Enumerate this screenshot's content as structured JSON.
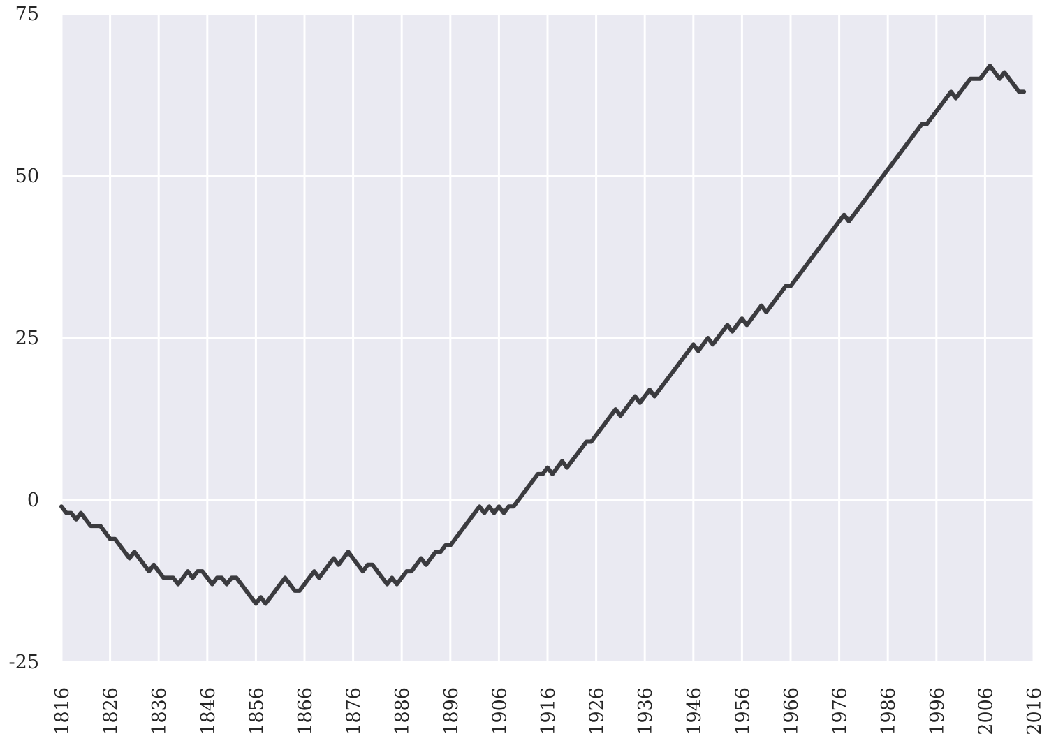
{
  "chart_data": {
    "type": "line",
    "x": [
      1816,
      1817,
      1818,
      1819,
      1820,
      1822,
      1824,
      1826,
      1827,
      1830,
      1831,
      1834,
      1835,
      1837,
      1839,
      1840,
      1842,
      1843,
      1844,
      1845,
      1847,
      1848,
      1849,
      1850,
      1851,
      1852,
      1856,
      1857,
      1858,
      1862,
      1864,
      1865,
      1868,
      1869,
      1872,
      1873,
      1875,
      1878,
      1879,
      1880,
      1883,
      1884,
      1885,
      1887,
      1888,
      1890,
      1891,
      1893,
      1894,
      1895,
      1896,
      1902,
      1903,
      1904,
      1905,
      1906,
      1907,
      1908,
      1909,
      1914,
      1915,
      1916,
      1917,
      1919,
      1920,
      1924,
      1925,
      1930,
      1931,
      1934,
      1935,
      1937,
      1938,
      1946,
      1947,
      1949,
      1950,
      1953,
      1954,
      1956,
      1957,
      1960,
      1961,
      1965,
      1966,
      1977,
      1978,
      1993,
      1994,
      1999,
      2000,
      2003,
      2005,
      2007,
      2009,
      2010,
      2013,
      2014
    ],
    "values": [
      -1,
      -2,
      -2,
      -3,
      -2,
      -4,
      -4,
      -6,
      -6,
      -9,
      -8,
      -11,
      -10,
      -12,
      -12,
      -13,
      -11,
      -12,
      -11,
      -11,
      -13,
      -12,
      -12,
      -13,
      -12,
      -12,
      -16,
      -15,
      -16,
      -12,
      -14,
      -14,
      -11,
      -12,
      -9,
      -10,
      -8,
      -11,
      -10,
      -10,
      -13,
      -12,
      -13,
      -11,
      -11,
      -9,
      -10,
      -8,
      -8,
      -7,
      -7,
      -1,
      -2,
      -1,
      -2,
      -1,
      -2,
      -1,
      -1,
      4,
      4,
      5,
      4,
      6,
      5,
      9,
      9,
      14,
      13,
      16,
      15,
      17,
      16,
      24,
      23,
      25,
      24,
      27,
      26,
      28,
      27,
      30,
      29,
      33,
      33,
      44,
      43,
      58,
      58,
      63,
      62,
      65,
      65,
      67,
      65,
      66,
      63,
      63
    ],
    "color": "#3b3b3f",
    "xlim": [
      1816,
      2016
    ],
    "xticks": [
      1816,
      1826,
      1836,
      1846,
      1856,
      1866,
      1876,
      1886,
      1896,
      1906,
      1916,
      1926,
      1936,
      1946,
      1956,
      1966,
      1976,
      1986,
      1996,
      2006,
      2016
    ],
    "ylim": [
      -25,
      75
    ],
    "yticks": [
      -25,
      0,
      25,
      50,
      75
    ],
    "grid": true
  }
}
